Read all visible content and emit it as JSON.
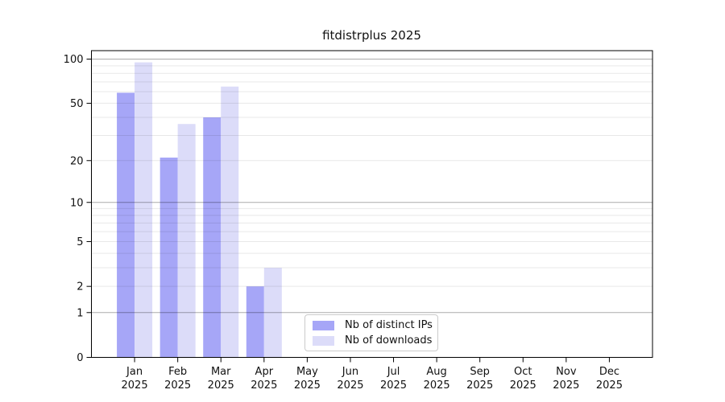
{
  "figure": {
    "background_color": "#ffffff",
    "text_color": "#111111",
    "axis_color": "#000000"
  },
  "chart_data": {
    "type": "bar",
    "title": "fitdistrplus 2025",
    "categories": [
      "Jan",
      "Feb",
      "Mar",
      "Apr",
      "May",
      "Jun",
      "Jul",
      "Aug",
      "Sep",
      "Oct",
      "Nov",
      "Dec"
    ],
    "xtick_year_line": "2025",
    "series": [
      {
        "name": "Nb of distinct IPs",
        "color": "#a6a6f7",
        "values": [
          59,
          21,
          40,
          2,
          null,
          null,
          null,
          null,
          null,
          null,
          null,
          null
        ]
      },
      {
        "name": "Nb of downloads",
        "color": "#dcdcf9",
        "values": [
          95,
          36,
          65,
          3,
          null,
          null,
          null,
          null,
          null,
          null,
          null,
          null
        ]
      }
    ],
    "yscale": "log1p",
    "ylim": [
      0,
      114
    ],
    "yticks": [
      0,
      1,
      2,
      5,
      10,
      20,
      50,
      100
    ],
    "grid": {
      "major": [
        1,
        10,
        100
      ],
      "minor": [
        2,
        3,
        4,
        5,
        6,
        7,
        8,
        9,
        20,
        30,
        40,
        50,
        60,
        70,
        80,
        90
      ],
      "major_color": "#ababab",
      "minor_color": "#e8e8e8"
    },
    "legend": {
      "position": "lower-center",
      "items": [
        "Nb of distinct IPs",
        "Nb of downloads"
      ]
    }
  }
}
